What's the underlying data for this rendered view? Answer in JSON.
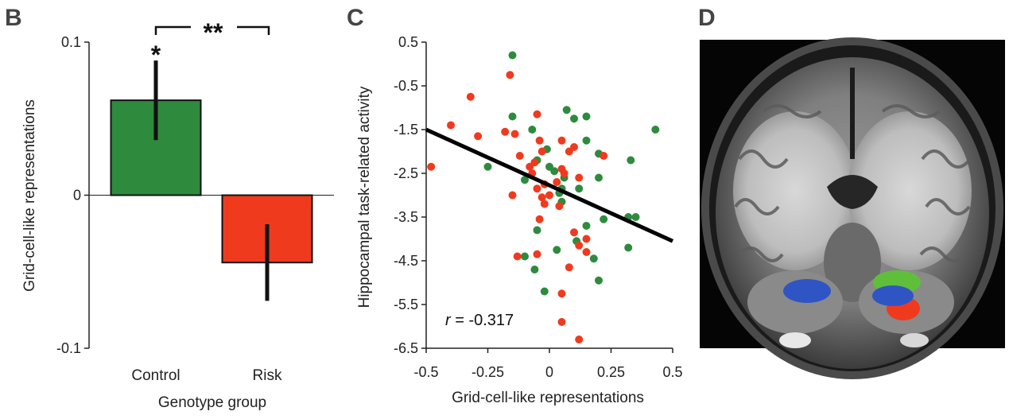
{
  "panels": {
    "b_label": "B",
    "c_label": "C",
    "d_label": "D"
  },
  "colors": {
    "control": "#2e8b3e",
    "risk": "#f03a1e",
    "mri_blue": "#2f55c4",
    "regression": "#000000"
  },
  "chart_data": [
    {
      "type": "bar",
      "panel": "B",
      "categories": [
        "Control",
        "Risk"
      ],
      "values": [
        0.062,
        -0.044
      ],
      "errors": [
        0.026,
        0.025
      ],
      "xlabel": "Genotype group",
      "ylabel": "Grid-cell-like representations",
      "ylim": [
        -0.1,
        0.1
      ],
      "yticks": [
        0.1,
        0,
        -0.1
      ],
      "ytick_labels": [
        "0.1",
        "0",
        "-0.1"
      ],
      "colors": [
        "#2e8b3e",
        "#f03a1e"
      ],
      "annotations": {
        "control_star": "*",
        "bracket_stars": "**"
      }
    },
    {
      "type": "scatter",
      "panel": "C",
      "xlabel": "Grid-cell-like representations",
      "ylabel": "Hippocampal task-related activity",
      "xlim": [
        -0.5,
        0.5
      ],
      "ylim": [
        -6.5,
        0.5
      ],
      "xticks": [
        -0.5,
        -0.25,
        0,
        0.25,
        0.5
      ],
      "xtick_labels": [
        "-0.5",
        "-0.25",
        "0",
        "0.25",
        "0.5"
      ],
      "yticks": [
        0.5,
        -0.5,
        -1.5,
        -2.5,
        -3.5,
        -4.5,
        -5.5,
        -6.5
      ],
      "ytick_labels": [
        "0.5",
        "-0.5",
        "-1.5",
        "-2.5",
        "-3.5",
        "-4.5",
        "-5.5",
        "-6.5"
      ],
      "r_label": "r",
      "r_value": " = -0.317",
      "regression": {
        "x": [
          -0.5,
          0.5
        ],
        "y": [
          -1.5,
          -4.05
        ]
      },
      "series": [
        {
          "group": "control",
          "color": "#2e8b3e",
          "points": [
            [
              -0.15,
              0.2
            ],
            [
              0.07,
              -1.05
            ],
            [
              0.1,
              -1.25
            ],
            [
              0.15,
              -1.2
            ],
            [
              -0.15,
              -1.2
            ],
            [
              0.43,
              -1.5
            ],
            [
              0.15,
              -1.75
            ],
            [
              -0.07,
              -1.5
            ],
            [
              -0.01,
              -1.95
            ],
            [
              0.33,
              -2.2
            ],
            [
              0.2,
              -2.05
            ],
            [
              -0.05,
              -2.2
            ],
            [
              -0.25,
              -2.35
            ],
            [
              0.0,
              -2.35
            ],
            [
              0.02,
              -2.45
            ],
            [
              -0.1,
              -2.65
            ],
            [
              0.2,
              -2.6
            ],
            [
              0.06,
              -2.6
            ],
            [
              0.12,
              -2.85
            ],
            [
              0.05,
              -2.85
            ],
            [
              0.04,
              -2.95
            ],
            [
              0.05,
              -3.15
            ],
            [
              0.22,
              -3.55
            ],
            [
              0.32,
              -3.5
            ],
            [
              0.35,
              -3.5
            ],
            [
              -0.05,
              -3.8
            ],
            [
              0.15,
              -3.7
            ],
            [
              0.11,
              -4.05
            ],
            [
              0.32,
              -4.2
            ],
            [
              0.03,
              -4.25
            ],
            [
              -0.1,
              -4.4
            ],
            [
              0.18,
              -4.45
            ],
            [
              -0.06,
              -4.7
            ],
            [
              0.2,
              -4.95
            ],
            [
              -0.02,
              -5.2
            ]
          ]
        },
        {
          "group": "risk",
          "color": "#f03a1e",
          "points": [
            [
              -0.16,
              -0.25
            ],
            [
              -0.32,
              -0.75
            ],
            [
              -0.05,
              -1.15
            ],
            [
              -0.4,
              -1.4
            ],
            [
              -0.18,
              -1.55
            ],
            [
              -0.29,
              -1.65
            ],
            [
              -0.14,
              -1.6
            ],
            [
              -0.04,
              -1.75
            ],
            [
              0.05,
              -1.75
            ],
            [
              0.1,
              -1.9
            ],
            [
              -0.03,
              -2.0
            ],
            [
              0.08,
              -2.0
            ],
            [
              0.22,
              -2.1
            ],
            [
              -0.12,
              -2.1
            ],
            [
              -0.06,
              -2.25
            ],
            [
              -0.08,
              -2.35
            ],
            [
              0.05,
              -2.4
            ],
            [
              0.06,
              -2.5
            ],
            [
              -0.48,
              -2.35
            ],
            [
              -0.07,
              -2.5
            ],
            [
              0.12,
              -2.6
            ],
            [
              0.03,
              -2.7
            ],
            [
              -0.02,
              -2.75
            ],
            [
              -0.05,
              -2.85
            ],
            [
              0.0,
              -3.0
            ],
            [
              -0.03,
              -3.05
            ],
            [
              -0.15,
              -3.0
            ],
            [
              0.04,
              -3.25
            ],
            [
              -0.02,
              -3.2
            ],
            [
              -0.04,
              -3.55
            ],
            [
              0.1,
              -3.85
            ],
            [
              0.15,
              -4.0
            ],
            [
              0.12,
              -4.15
            ],
            [
              0.15,
              -4.3
            ],
            [
              -0.13,
              -4.4
            ],
            [
              -0.05,
              -4.35
            ],
            [
              0.08,
              -4.65
            ],
            [
              0.05,
              -5.25
            ],
            [
              0.05,
              -5.9
            ],
            [
              0.12,
              -6.3
            ]
          ]
        }
      ]
    }
  ]
}
